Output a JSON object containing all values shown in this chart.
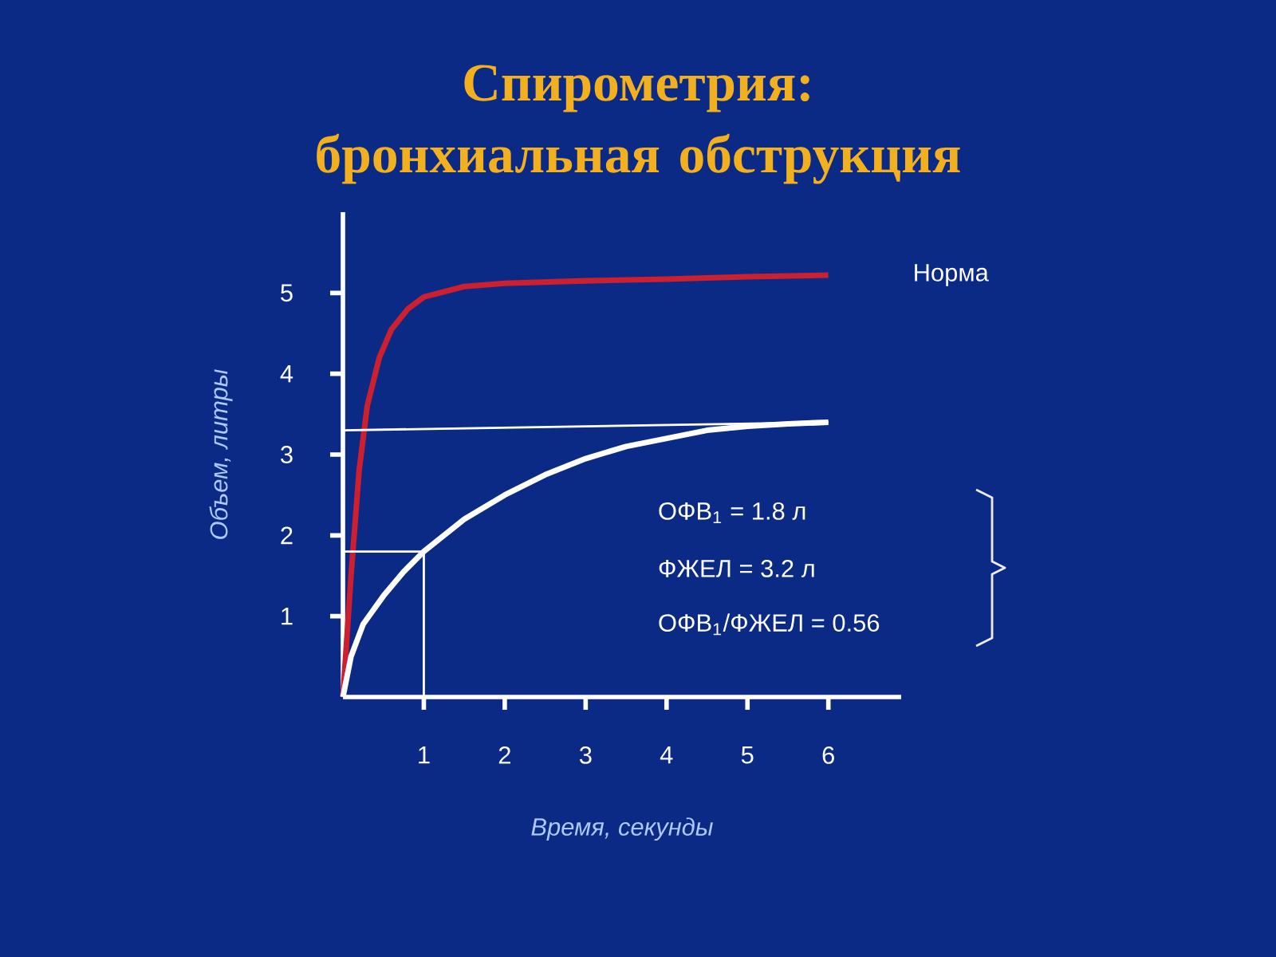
{
  "chart_data": {
    "type": "line",
    "title": "Спирометрия: бронхиальная обструкция",
    "xlabel": "Время, секунды",
    "ylabel": "Объем, литры",
    "xlim": [
      0,
      6.9
    ],
    "ylim": [
      0,
      6
    ],
    "xticks": [
      1,
      2,
      3,
      4,
      5,
      6
    ],
    "yticks": [
      1,
      2,
      3,
      4,
      5
    ],
    "annotations": [
      "ОФВ$_{1}$ = 1.8 л",
      "ФЖЕЛ = 3.2 л",
      "ОФВ$_{1}$/ФЖЕЛ = 0.56"
    ],
    "series": [
      {
        "name": "Норма",
        "color": "#cc1f2f",
        "x": [
          0,
          0.1,
          0.2,
          0.3,
          0.45,
          0.6,
          0.8,
          1.0,
          1.5,
          2,
          3,
          4,
          5,
          6
        ],
        "values": [
          0,
          1.5,
          2.8,
          3.6,
          4.2,
          4.55,
          4.8,
          4.95,
          5.08,
          5.12,
          5.15,
          5.17,
          5.2,
          5.22
        ]
      },
      {
        "color": "#ffffff",
        "x": [
          0,
          0.1,
          0.25,
          0.5,
          0.75,
          1,
          1.5,
          2,
          2.5,
          3,
          3.5,
          4,
          4.5,
          5,
          5.5,
          6
        ],
        "values": [
          0,
          0.5,
          0.9,
          1.25,
          1.55,
          1.8,
          2.2,
          2.5,
          2.75,
          2.95,
          3.1,
          3.2,
          3.3,
          3.35,
          3.38,
          3.4
        ]
      },
      {
        "color": "#ffffff",
        "x": [
          0,
          6
        ],
        "values": [
          3.3,
          3.4
        ]
      },
      {
        "color": "#ffffff",
        "x": [
          0,
          1,
          1
        ],
        "values": [
          1.8,
          1.8,
          0
        ]
      }
    ]
  }
}
